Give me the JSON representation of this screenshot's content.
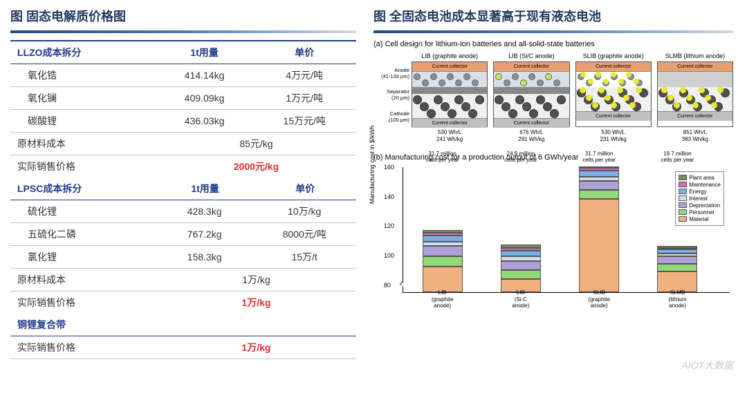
{
  "left": {
    "title": "图 固态电解质价格图",
    "llzo_header": {
      "c1": "LLZO成本拆分",
      "c2": "1t用量",
      "c3": "单价"
    },
    "llzo_rows": [
      {
        "c1": "氧化锆",
        "c2": "414.14kg",
        "c3": "4万元/吨"
      },
      {
        "c1": "氧化镧",
        "c2": "409.09kg",
        "c3": "1万元/吨"
      },
      {
        "c1": "碳酸锂",
        "c2": "436.03kg",
        "c3": "15万元/吨"
      }
    ],
    "llzo_mat": {
      "label": "原材料成本",
      "val": "85元/kg"
    },
    "llzo_price": {
      "label": "实际销售价格",
      "val": "2000元/kg"
    },
    "lpsc_header": {
      "c1": "LPSC成本拆分",
      "c2": "1t用量",
      "c3": "单价"
    },
    "lpsc_rows": [
      {
        "c1": "硫化锂",
        "c2": "428.3kg",
        "c3": "10万/kg"
      },
      {
        "c1": "五硫化二磷",
        "c2": "767.2kg",
        "c3": "8000元/吨"
      },
      {
        "c1": "氯化锂",
        "c2": "158.3kg",
        "c3": "15万/t"
      }
    ],
    "lpsc_mat": {
      "label": "原材料成本",
      "val": "1万/kg"
    },
    "lpsc_price": {
      "label": "实际销售价格",
      "val": "1万/kg"
    },
    "culi_header": "铜锂复合带",
    "culi_price": {
      "label": "实际销售价格",
      "val": "1万/kg"
    }
  },
  "right": {
    "title": "图 全固态电池成本显著高于现有液态电池",
    "sub_a": "(a) Cell design for lithium-ion batteries and all-solid-state batteries",
    "sub_b": "(b) Manufacturing cost for a production output of 6 GWh/year",
    "side": {
      "anode": "Anode\n(41-133 μm)",
      "sep": "Separator\n(20 μm)",
      "cathode": "Cathode\n(100 μm)"
    },
    "cells": [
      {
        "title": "LIB (graphite anode)",
        "spec1": "530 Wh/L",
        "spec2": "241 Wh/kg",
        "anode_bg": "#d8e0e8",
        "sep_bg": "#888",
        "yellow": false,
        "li": false
      },
      {
        "title": "LIB (Si/C anode)",
        "spec1": "676 Wh/L",
        "spec2": "291 Wh/kg",
        "anode_bg": "#d8e0e8",
        "sep_bg": "#888",
        "yellow": false,
        "sic": true,
        "li": false
      },
      {
        "title": "SLIB (graphite anode)",
        "spec1": "530 Wh/L",
        "spec2": "231 Wh/kg",
        "anode_bg": "#fff",
        "sep_bg": "none",
        "yellow": true,
        "li": false
      },
      {
        "title": "SLMB (lithium anode)",
        "spec1": "851 Wh/L",
        "spec2": "383 Wh/kg",
        "anode_bg": "#d0d0d0",
        "sep_bg": "none",
        "yellow": true,
        "li": true
      }
    ],
    "cc_label": "Current collector",
    "chart": {
      "ylabel": "Manufacturing cost in $/kWh",
      "ymin": 75,
      "ymax": 160,
      "yticks": [
        80,
        100,
        120,
        140,
        160
      ],
      "top_labels": [
        "31.7 million\ncells per year",
        "24.9 million\ncells per year",
        "31.7 million\ncells per year",
        "19.7 million\ncells per year"
      ],
      "x_labels": [
        "LIB\n(graphite anode)",
        "LIB\n(Si-C anode)",
        "SLIB\n(graphite anode)",
        "SLMB\n(lithium anode)"
      ],
      "legend": [
        {
          "name": "Plant area",
          "color": "#7a8a5a"
        },
        {
          "name": "Maintenance",
          "color": "#d070b0"
        },
        {
          "name": "Energy",
          "color": "#7ab0e8"
        },
        {
          "name": "Interest",
          "color": "#d0e0f0"
        },
        {
          "name": "Depreciation",
          "color": "#b0a0d8"
        },
        {
          "name": "Personnel",
          "color": "#90d878"
        },
        {
          "name": "Material",
          "color": "#f0b080"
        }
      ],
      "bars": [
        {
          "x": 12,
          "segs": [
            {
              "c": "#f0b080",
              "v": 17
            },
            {
              "c": "#90d878",
              "v": 7
            },
            {
              "c": "#b0a0d8",
              "v": 7
            },
            {
              "c": "#d0e0f0",
              "v": 3
            },
            {
              "c": "#7ab0e8",
              "v": 4
            },
            {
              "c": "#d070b0",
              "v": 2
            },
            {
              "c": "#7a8a5a",
              "v": 2
            }
          ]
        },
        {
          "x": 36,
          "segs": [
            {
              "c": "#f0b080",
              "v": 9
            },
            {
              "c": "#90d878",
              "v": 6
            },
            {
              "c": "#b0a0d8",
              "v": 6
            },
            {
              "c": "#d0e0f0",
              "v": 3
            },
            {
              "c": "#7ab0e8",
              "v": 4
            },
            {
              "c": "#d070b0",
              "v": 2
            },
            {
              "c": "#7a8a5a",
              "v": 2
            }
          ]
        },
        {
          "x": 60,
          "segs": [
            {
              "c": "#f0b080",
              "v": 63
            },
            {
              "c": "#90d878",
              "v": 6
            },
            {
              "c": "#b0a0d8",
              "v": 6
            },
            {
              "c": "#d0e0f0",
              "v": 3
            },
            {
              "c": "#7ab0e8",
              "v": 4
            },
            {
              "c": "#d070b0",
              "v": 2
            },
            {
              "c": "#7a8a5a",
              "v": 1
            }
          ]
        },
        {
          "x": 84,
          "segs": [
            {
              "c": "#f0b080",
              "v": 14
            },
            {
              "c": "#90d878",
              "v": 5
            },
            {
              "c": "#b0a0d8",
              "v": 5
            },
            {
              "c": "#d0e0f0",
              "v": 2
            },
            {
              "c": "#7ab0e8",
              "v": 3
            },
            {
              "c": "#d070b0",
              "v": 1
            },
            {
              "c": "#7a8a5a",
              "v": 1
            }
          ]
        }
      ]
    }
  },
  "watermark": "AIOT大数据"
}
